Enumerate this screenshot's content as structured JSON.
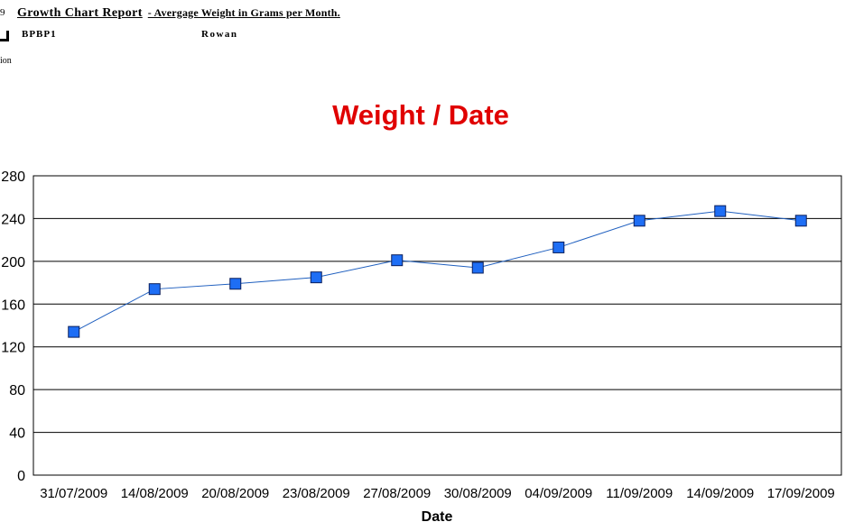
{
  "report": {
    "left_fragment": "9",
    "title": "Growth Chart Report",
    "subtitle": "-  Avergage Weight in Grams per Month.",
    "code": "BPBP1",
    "name": "Rowan",
    "side_fragment": "ion"
  },
  "chart_data": {
    "type": "line",
    "title": "Weight / Date",
    "xlabel": "Date",
    "ylabel": "",
    "categories": [
      "31/07/2009",
      "14/08/2009",
      "20/08/2009",
      "23/08/2009",
      "27/08/2009",
      "30/08/2009",
      "04/09/2009",
      "11/09/2009",
      "14/09/2009",
      "17/09/2009"
    ],
    "series": [
      {
        "values": [
          134,
          174,
          179,
          185,
          201,
          194,
          213,
          238,
          247,
          238
        ]
      }
    ],
    "ylim": [
      0,
      280
    ],
    "yticks": [
      0,
      40,
      80,
      120,
      160,
      200,
      240,
      280
    ],
    "grid": true,
    "legend": "none",
    "colors": {
      "line": "#1f5fbf",
      "marker": "#1e6ef5",
      "marker_edge": "#0a1f5c",
      "title": "#e00000"
    }
  }
}
